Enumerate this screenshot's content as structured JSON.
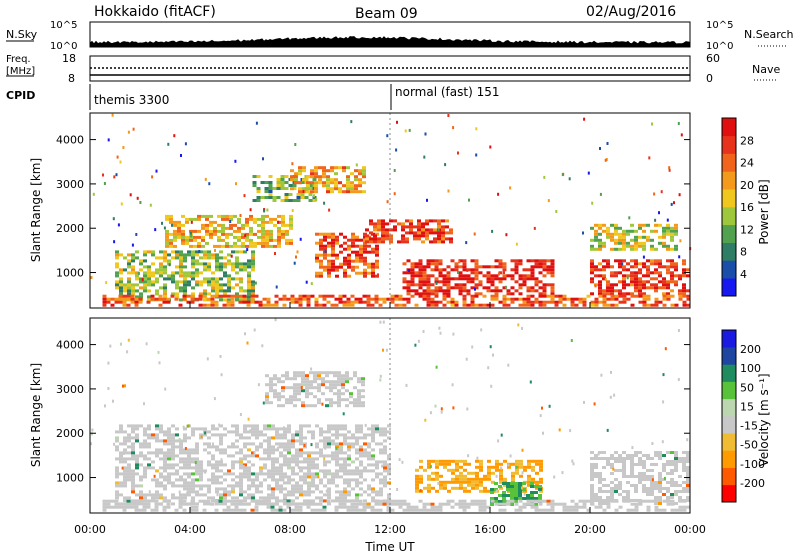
{
  "header": {
    "station": "Hokkaido (fitACF)",
    "beam": "Beam 09",
    "date": "02/Aug/2016"
  },
  "panels": {
    "nsky": {
      "label": "N.Sky",
      "tick_top": "10^5",
      "tick_bottom": "10^0",
      "right_label": "N.Search"
    },
    "freq": {
      "label_line1": "Freq.",
      "label_line2": "[MHz]",
      "tick_top": "18",
      "tick_bottom": "8",
      "right_top": "60",
      "right_bottom": "0",
      "right_label": "Nave"
    },
    "cpid": {
      "label": "CPID",
      "segments": [
        {
          "text": "themis 3300"
        },
        {
          "text": "normal (fast) 151"
        }
      ]
    }
  },
  "colors": {
    "power": [
      "#1818f0",
      "#1a4ea8",
      "#2f7d64",
      "#51a14e",
      "#9ec73b",
      "#f0c81d",
      "#f39a1c",
      "#f0641c",
      "#e7331c",
      "#e01010"
    ],
    "velocity": [
      "#ff0000",
      "#ff5a00",
      "#ff9b00",
      "#f0bc33",
      "#c8c8c8",
      "#bcd6b0",
      "#58c23a",
      "#1e8c5e",
      "#1e46a0",
      "#1a1ae0"
    ],
    "ground": "#c8c8c8"
  },
  "chart_data": [
    {
      "type": "heatmap",
      "name": "power",
      "ylabel": "Slant Range [km]",
      "yticks": [
        "1000",
        "2000",
        "3000",
        "4000"
      ],
      "ylim": [
        200,
        4600
      ],
      "xlim": [
        0,
        24
      ],
      "colorbar": {
        "label": "Power [dB]",
        "ticks": [
          "4",
          "8",
          "12",
          "16",
          "20",
          "24",
          "28"
        ],
        "range": [
          0,
          32
        ]
      },
      "regions": [
        {
          "t": [
            1.0,
            6.5
          ],
          "r": [
            400,
            1500
          ],
          "v": 14
        },
        {
          "t": [
            3.0,
            8.0
          ],
          "r": [
            1600,
            2300
          ],
          "v": 19
        },
        {
          "t": [
            6.5,
            9.0
          ],
          "r": [
            2600,
            3200
          ],
          "v": 12
        },
        {
          "t": [
            8.0,
            11.0
          ],
          "r": [
            2800,
            3400
          ],
          "v": 20
        },
        {
          "t": [
            9.0,
            11.5
          ],
          "r": [
            900,
            1900
          ],
          "v": 26
        },
        {
          "t": [
            11.0,
            14.5
          ],
          "r": [
            1700,
            2200
          ],
          "v": 27
        },
        {
          "t": [
            12.5,
            18.5
          ],
          "r": [
            500,
            1300
          ],
          "v": 29
        },
        {
          "t": [
            20.0,
            24.0
          ],
          "r": [
            500,
            1300
          ],
          "v": 28
        },
        {
          "t": [
            20.0,
            23.5
          ],
          "r": [
            1500,
            2100
          ],
          "v": 16
        },
        {
          "t": [
            0.5,
            24.0
          ],
          "r": [
            250,
            500
          ],
          "v": 25
        }
      ]
    },
    {
      "type": "heatmap",
      "name": "velocity",
      "xlabel": "Time UT",
      "ylabel": "Slant Range [km]",
      "xticks": [
        "00:00",
        "04:00",
        "08:00",
        "12:00",
        "16:00",
        "20:00",
        "00:00"
      ],
      "yticks": [
        "1000",
        "2000",
        "3000",
        "4000"
      ],
      "ylim": [
        200,
        4600
      ],
      "xlim": [
        0,
        24
      ],
      "colorbar": {
        "label": "Velocity [m s⁻¹]",
        "ticks": [
          "200",
          "100",
          "50",
          "15",
          "-15",
          "-50",
          "-100",
          "-200"
        ]
      },
      "regions": [
        {
          "t": [
            1.0,
            12.0
          ],
          "r": [
            400,
            2200
          ],
          "v": 0
        },
        {
          "t": [
            7.0,
            11.0
          ],
          "r": [
            2600,
            3400
          ],
          "v": 0
        },
        {
          "t": [
            13.0,
            18.0
          ],
          "r": [
            700,
            1400
          ],
          "v": -60
        },
        {
          "t": [
            16.0,
            18.0
          ],
          "r": [
            400,
            900
          ],
          "v": 100
        },
        {
          "t": [
            20.0,
            24.0
          ],
          "r": [
            400,
            1600
          ],
          "v": 0
        },
        {
          "t": [
            0.5,
            24.0
          ],
          "r": [
            250,
            500
          ],
          "v": 0
        }
      ]
    }
  ]
}
